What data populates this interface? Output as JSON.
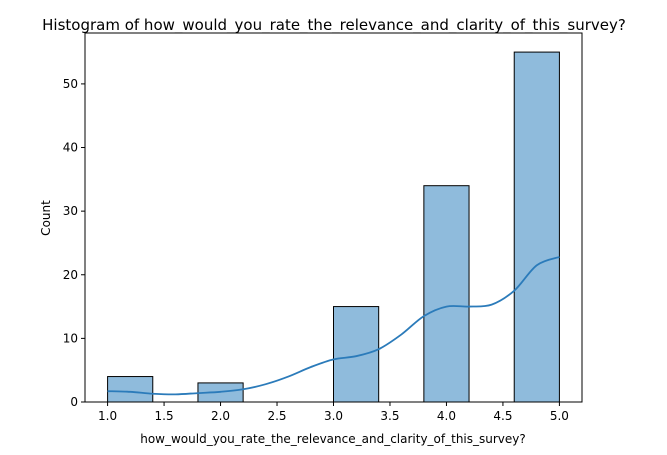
{
  "chart_data": {
    "type": "bar",
    "title": "Histogram of how_would_you_rate_the_relevance_and_clarity_of_this_survey?",
    "xlabel": "how_would_you_rate_the_relevance_and_clarity_of_this_survey?",
    "ylabel": "Count",
    "xlim": [
      0.8,
      5.2
    ],
    "ylim": [
      0,
      58
    ],
    "xticks": [
      1.0,
      1.5,
      2.0,
      2.5,
      3.0,
      3.5,
      4.0,
      4.5,
      5.0
    ],
    "xtick_labels": [
      "1.0",
      "1.5",
      "2.0",
      "2.5",
      "3.0",
      "3.5",
      "4.0",
      "4.5",
      "5.0"
    ],
    "yticks": [
      0,
      10,
      20,
      30,
      40,
      50
    ],
    "ytick_labels": [
      "0",
      "10",
      "20",
      "30",
      "40",
      "50"
    ],
    "bins": [
      {
        "x0": 1.0,
        "x1": 1.4,
        "count": 4
      },
      {
        "x0": 1.8,
        "x1": 2.2,
        "count": 3
      },
      {
        "x0": 3.0,
        "x1": 3.4,
        "count": 15
      },
      {
        "x0": 3.8,
        "x1": 4.2,
        "count": 34
      },
      {
        "x0": 4.6,
        "x1": 5.0,
        "count": 55
      }
    ],
    "kde": {
      "x": [
        1.0,
        1.2,
        1.4,
        1.6,
        1.8,
        2.0,
        2.2,
        2.4,
        2.6,
        2.8,
        3.0,
        3.2,
        3.4,
        3.6,
        3.8,
        4.0,
        4.2,
        4.4,
        4.6,
        4.8,
        5.0
      ],
      "y": [
        1.7,
        1.6,
        1.3,
        1.2,
        1.4,
        1.6,
        2.0,
        2.8,
        4.0,
        5.5,
        6.7,
        7.2,
        8.3,
        10.6,
        13.5,
        15.0,
        15.0,
        15.3,
        17.5,
        21.5,
        22.8
      ]
    },
    "grid": false,
    "colors": {
      "bar_fill": "#8fbbdc",
      "bar_edge": "#000000",
      "kde_line": "#2b7bba"
    }
  }
}
